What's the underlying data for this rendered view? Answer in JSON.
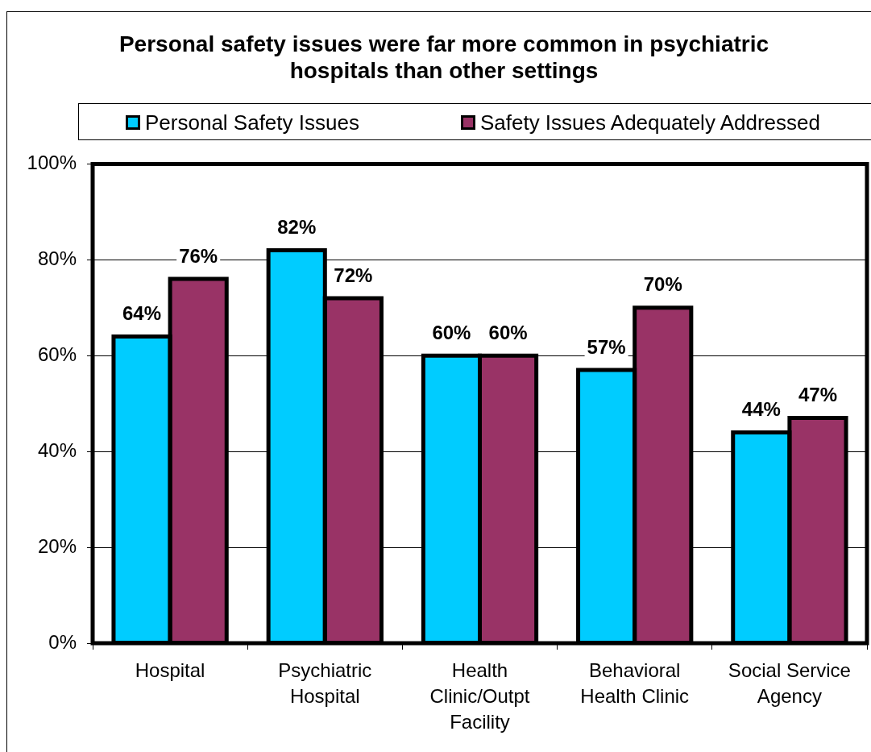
{
  "chart_data": {
    "type": "bar",
    "title": "Personal safety issues were far more common in psychiatric hospitals than other settings",
    "categories": [
      "Hospital",
      "Psychiatric Hospital",
      "Health Clinic/Outpt Facility",
      "Behavioral Health Clinic",
      "Social Service Agency"
    ],
    "series": [
      {
        "name": "Personal Safety Issues",
        "color": "#00ccff",
        "values": [
          64,
          82,
          60,
          57,
          44
        ],
        "value_labels": [
          "64%",
          "82%",
          "60%",
          "57%",
          "44%"
        ]
      },
      {
        "name": "Safety Issues Adequately Addressed",
        "color": "#993366",
        "values": [
          76,
          72,
          60,
          70,
          47
        ],
        "value_labels": [
          "76%",
          "72%",
          "60%",
          "70%",
          "47%"
        ]
      }
    ],
    "ylim": [
      0,
      100
    ],
    "yticks": [
      {
        "value": 0,
        "label": "0%"
      },
      {
        "value": 20,
        "label": "20%"
      },
      {
        "value": 40,
        "label": "40%"
      },
      {
        "value": 60,
        "label": "60%"
      },
      {
        "value": 80,
        "label": "80%"
      },
      {
        "value": 100,
        "label": "100%"
      }
    ],
    "grid": "y",
    "legend": "top"
  }
}
